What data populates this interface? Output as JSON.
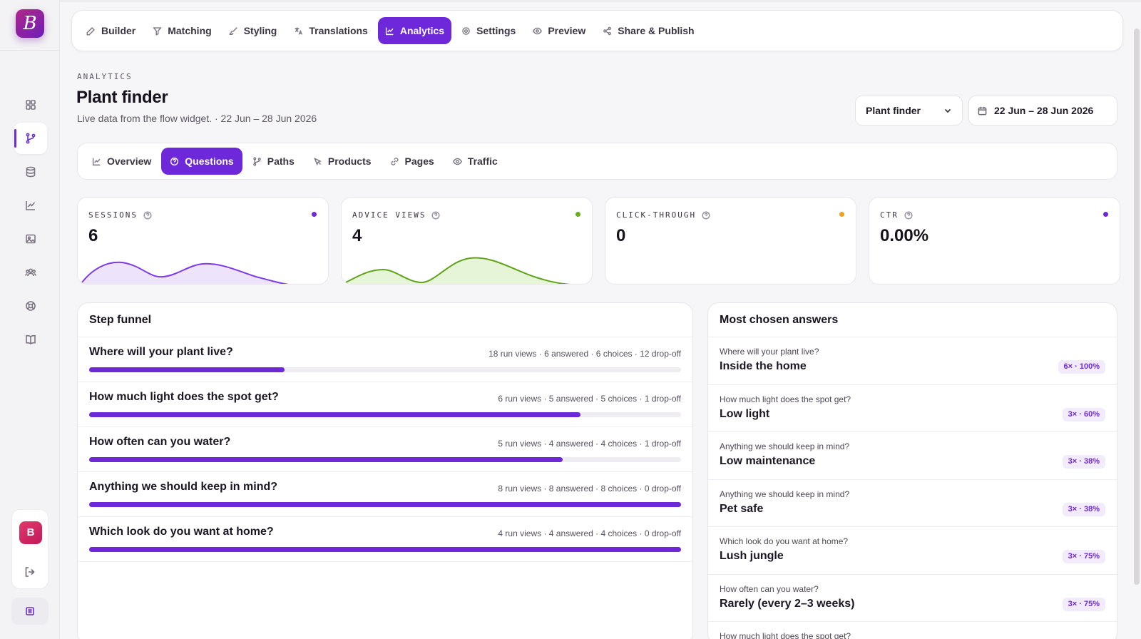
{
  "app": {
    "logo_letter": "B",
    "user_initial": "B"
  },
  "topnav": [
    {
      "label": "Builder",
      "icon": "pencil-icon"
    },
    {
      "label": "Matching",
      "icon": "filter-icon"
    },
    {
      "label": "Styling",
      "icon": "brush-icon"
    },
    {
      "label": "Translations",
      "icon": "translate-icon"
    },
    {
      "label": "Analytics",
      "icon": "chart-line-icon",
      "active": true
    },
    {
      "label": "Settings",
      "icon": "gear-icon"
    },
    {
      "label": "Preview",
      "icon": "eye-icon"
    },
    {
      "label": "Share & Publish",
      "icon": "share-icon"
    }
  ],
  "header": {
    "eyebrow": "ANALYTICS",
    "title": "Plant finder",
    "subtitle": "Live data from the flow widget. · 22 Jun – 28 Jun 2026",
    "flow_select": "Plant finder",
    "date_range": "22 Jun – 28 Jun 2026"
  },
  "subtabs": [
    {
      "label": "Overview",
      "icon": "trend-icon"
    },
    {
      "label": "Questions",
      "icon": "question-icon",
      "active": true
    },
    {
      "label": "Paths",
      "icon": "branch-icon"
    },
    {
      "label": "Products",
      "icon": "cursor-icon"
    },
    {
      "label": "Pages",
      "icon": "link-icon"
    },
    {
      "label": "Traffic",
      "icon": "eye-icon"
    }
  ],
  "stats": [
    {
      "label": "SESSIONS",
      "value": "6",
      "dot_color": "#6d28d9",
      "line_color": "#7c3aed",
      "fill_color": "#ede4fb"
    },
    {
      "label": "ADVICE VIEWS",
      "value": "4",
      "dot_color": "#65b01c",
      "line_color": "#5fa318",
      "fill_color": "#e6f4d8"
    },
    {
      "label": "CLICK-THROUGH",
      "value": "0",
      "dot_color": "#f0a020",
      "line_color": "#7c3aed",
      "fill_color": "#ede4fb"
    },
    {
      "label": "CTR",
      "value": "0.00%",
      "dot_color": "#6d28d9",
      "line_color": "#f0a020",
      "fill_color": "#fdf0d8"
    }
  ],
  "funnel": {
    "title": "Step funnel",
    "rows": [
      {
        "question": "Where will your plant live?",
        "meta": "18 run views · 6 answered · 6 choices · 12 drop-off",
        "progress": 0.33
      },
      {
        "question": "How much light does the spot get?",
        "meta": "6 run views · 5 answered · 5 choices · 1 drop-off",
        "progress": 0.83
      },
      {
        "question": "How often can you water?",
        "meta": "5 run views · 4 answered · 4 choices · 1 drop-off",
        "progress": 0.8
      },
      {
        "question": "Anything we should keep in mind?",
        "meta": "8 run views · 8 answered · 8 choices · 0 drop-off",
        "progress": 1.0
      },
      {
        "question": "Which look do you want at home?",
        "meta": "4 run views · 4 answered · 4 choices · 0 drop-off",
        "progress": 1.0
      }
    ]
  },
  "answers": {
    "title": "Most chosen answers",
    "rows": [
      {
        "question": "Where will your plant live?",
        "answer": "Inside the home",
        "badge": "6× · 100%"
      },
      {
        "question": "How much light does the spot get?",
        "answer": "Low light",
        "badge": "3× · 60%"
      },
      {
        "question": "Anything we should keep in mind?",
        "answer": "Low maintenance",
        "badge": "3× · 38%"
      },
      {
        "question": "Anything we should keep in mind?",
        "answer": "Pet safe",
        "badge": "3× · 38%"
      },
      {
        "question": "Which look do you want at home?",
        "answer": "Lush jungle",
        "badge": "3× · 75%"
      },
      {
        "question": "How often can you water?",
        "answer": "Rarely (every 2–3 weeks)",
        "badge": "3× · 75%"
      },
      {
        "question": "How much light does the spot get?",
        "answer": "",
        "badge": ""
      }
    ]
  }
}
